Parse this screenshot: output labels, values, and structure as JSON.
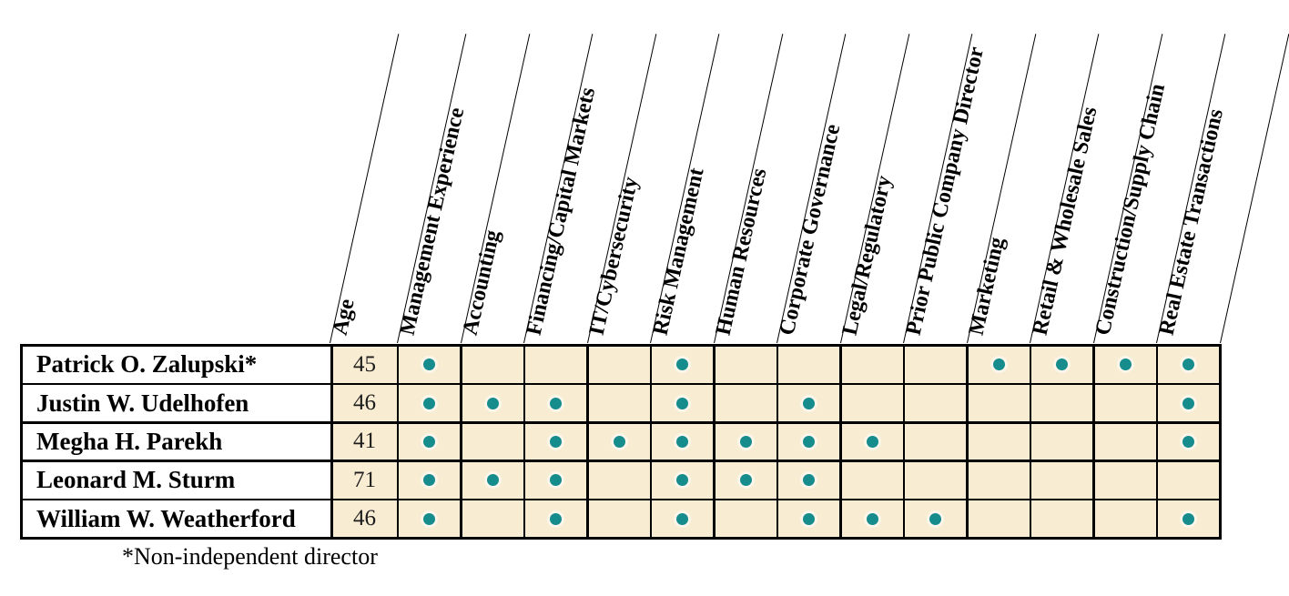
{
  "table": {
    "age_header": "Age",
    "skill_headers": [
      "Management Experience",
      "Accounting",
      "Financing/Capital Markets",
      "IT/Cybersecurity",
      "Risk Management",
      "Human Resources",
      "Corporate Governance",
      "Legal/Regulatory",
      "Prior Public Company Director",
      "Marketing",
      "Retail & Wholesale Sales",
      "Construction/Supply Chain",
      "Real Estate Transactions"
    ],
    "directors": [
      {
        "name": "Patrick O. Zalupski*",
        "age": "45",
        "skills": [
          1,
          0,
          0,
          0,
          1,
          0,
          0,
          0,
          0,
          1,
          1,
          1,
          1
        ]
      },
      {
        "name": "Justin W. Udelhofen",
        "age": "46",
        "skills": [
          1,
          1,
          1,
          0,
          1,
          0,
          1,
          0,
          0,
          0,
          0,
          0,
          1
        ]
      },
      {
        "name": "Megha H. Parekh",
        "age": "41",
        "skills": [
          1,
          0,
          1,
          1,
          1,
          1,
          1,
          1,
          0,
          0,
          0,
          0,
          1
        ]
      },
      {
        "name": "Leonard M. Sturm",
        "age": "71",
        "skills": [
          1,
          1,
          1,
          0,
          1,
          1,
          1,
          0,
          0,
          0,
          0,
          0,
          0
        ]
      },
      {
        "name": "William W. Weatherford",
        "age": "46",
        "skills": [
          1,
          0,
          1,
          0,
          1,
          0,
          1,
          1,
          1,
          0,
          0,
          0,
          1
        ]
      }
    ]
  },
  "footnote": "*Non-independent director",
  "colors": {
    "cell_bg": "#F8ECD2",
    "dot": "#168C8C",
    "border": "#000000",
    "name_cell_bg": "#FFFFFF"
  }
}
